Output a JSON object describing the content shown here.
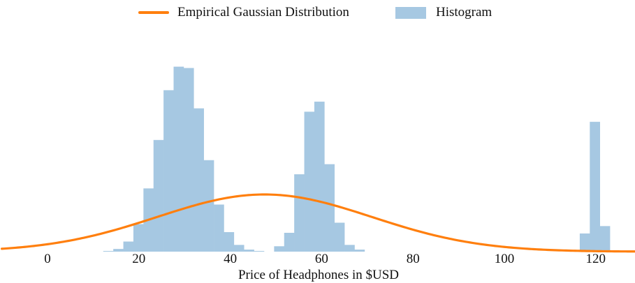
{
  "chart_data": {
    "type": "histogram_with_density",
    "title": "",
    "xlabel": "Price of Headphones in $USD",
    "ylabel": "",
    "xlim": [
      -10,
      130
    ],
    "xticks": [
      0,
      20,
      40,
      60,
      80,
      100,
      120
    ],
    "grid": false,
    "legend_position": "top-center",
    "series": [
      {
        "name": "Empirical Gaussian Distribution",
        "kind": "line",
        "color": "#ff7f0e",
        "mean": 47.5,
        "std": 23.5
      },
      {
        "name": "Histogram",
        "kind": "histogram",
        "color": "#a6c8e2",
        "bin_width": 2.2,
        "bins": [
          {
            "x0": 12.2,
            "count": 1
          },
          {
            "x0": 14.4,
            "count": 4
          },
          {
            "x0": 16.6,
            "count": 15
          },
          {
            "x0": 18.8,
            "count": 41
          },
          {
            "x0": 21.0,
            "count": 94
          },
          {
            "x0": 23.2,
            "count": 166
          },
          {
            "x0": 25.4,
            "count": 240
          },
          {
            "x0": 27.6,
            "count": 275
          },
          {
            "x0": 29.8,
            "count": 273
          },
          {
            "x0": 32.0,
            "count": 213
          },
          {
            "x0": 34.2,
            "count": 136
          },
          {
            "x0": 36.4,
            "count": 70
          },
          {
            "x0": 38.6,
            "count": 29
          },
          {
            "x0": 40.8,
            "count": 10
          },
          {
            "x0": 43.0,
            "count": 3
          },
          {
            "x0": 45.2,
            "count": 1
          },
          {
            "x0": 49.6,
            "count": 8
          },
          {
            "x0": 51.8,
            "count": 28
          },
          {
            "x0": 54.0,
            "count": 115
          },
          {
            "x0": 56.2,
            "count": 208
          },
          {
            "x0": 58.4,
            "count": 223
          },
          {
            "x0": 60.6,
            "count": 130
          },
          {
            "x0": 62.8,
            "count": 43
          },
          {
            "x0": 65.0,
            "count": 10
          },
          {
            "x0": 67.2,
            "count": 3
          },
          {
            "x0": 116.5,
            "count": 27
          },
          {
            "x0": 118.7,
            "count": 193
          },
          {
            "x0": 120.9,
            "count": 38
          }
        ]
      }
    ]
  }
}
